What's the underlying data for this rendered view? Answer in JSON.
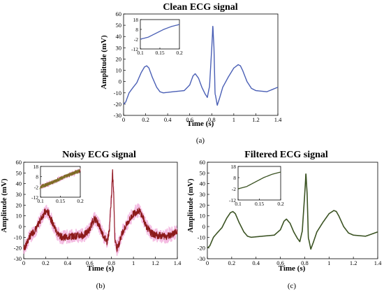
{
  "colors": {
    "clean": "#4a5fb5",
    "noisy_band": "#f0a6d8",
    "noisy_line": "#8c1a1a",
    "filtered": "#3b5323",
    "axis": "#000000"
  },
  "chart_data": [
    {
      "type": "line",
      "panel": "(a)",
      "title": "Clean ECG signal",
      "xlabel": "Time (s)",
      "ylabel": "Amplitude (mV)",
      "xlim": [
        0,
        1.4
      ],
      "ylim": [
        -30,
        60
      ],
      "xticks": [
        "0",
        "0.2",
        "0.4",
        "0.6",
        "0.8",
        "1",
        "1.2",
        "1.4"
      ],
      "yticks": [
        "-30",
        "-20",
        "-10",
        "0",
        "10",
        "20",
        "30",
        "40",
        "50",
        "60"
      ],
      "grid": false,
      "series": [
        {
          "x": [
            0,
            0.02,
            0.05,
            0.08,
            0.12,
            0.16,
            0.19,
            0.21,
            0.23,
            0.26,
            0.3,
            0.33,
            0.36,
            0.45,
            0.55,
            0.6,
            0.63,
            0.65,
            0.68,
            0.71,
            0.74,
            0.76,
            0.78,
            0.8,
            0.81,
            0.82,
            0.83,
            0.85,
            0.87,
            0.9,
            0.95,
            1.0,
            1.04,
            1.06,
            1.08,
            1.12,
            1.16,
            1.2,
            1.3,
            1.4
          ],
          "y": [
            -20,
            -18,
            -10,
            -6,
            -1,
            8,
            13,
            14,
            12,
            4,
            -5,
            -9,
            -10,
            -9,
            -8,
            -3,
            5,
            7,
            3,
            -5,
            -11,
            -14,
            -4,
            30,
            49,
            30,
            -10,
            -21,
            -15,
            -5,
            4,
            12,
            15,
            14,
            10,
            0,
            -6,
            -8,
            -9,
            -5
          ]
        }
      ],
      "inset": {
        "xlim": [
          0.1,
          0.2
        ],
        "ylim": [
          -12,
          18
        ],
        "xticks": [
          "0.1",
          "0.15",
          "0.2"
        ],
        "yticks": [
          "-12",
          "-2",
          "8",
          "18"
        ],
        "x": [
          0.1,
          0.12,
          0.14,
          0.16,
          0.18,
          0.2
        ],
        "y": [
          -2,
          0,
          4,
          8,
          11,
          13
        ]
      }
    },
    {
      "type": "line",
      "panel": "(b)",
      "title": "Noisy ECG signal",
      "xlabel": "Time (s)",
      "ylabel": "Amplitude (mV)",
      "xlim": [
        0,
        1.4
      ],
      "ylim": [
        -30,
        60
      ],
      "xticks": [
        "0",
        "0.2",
        "0.4",
        "0.6",
        "0.8",
        "1",
        "1.2",
        "1.4"
      ],
      "yticks": [
        "-30",
        "-20",
        "-10",
        "0",
        "10",
        "20",
        "30",
        "40",
        "50",
        "60"
      ],
      "grid": false,
      "series": [
        {
          "x": [
            0,
            0.02,
            0.05,
            0.08,
            0.12,
            0.16,
            0.19,
            0.21,
            0.23,
            0.26,
            0.3,
            0.33,
            0.36,
            0.45,
            0.55,
            0.6,
            0.63,
            0.65,
            0.68,
            0.71,
            0.74,
            0.76,
            0.78,
            0.8,
            0.81,
            0.82,
            0.83,
            0.85,
            0.87,
            0.9,
            0.95,
            1.0,
            1.04,
            1.06,
            1.08,
            1.12,
            1.16,
            1.2,
            1.3,
            1.4
          ],
          "y": [
            -20,
            -18,
            -10,
            -6,
            -1,
            8,
            13,
            14,
            12,
            4,
            -5,
            -9,
            -10,
            -9,
            -8,
            -3,
            5,
            7,
            3,
            -5,
            -11,
            -14,
            -4,
            30,
            50,
            30,
            -10,
            -21,
            -15,
            -5,
            4,
            12,
            15,
            14,
            10,
            0,
            -6,
            -8,
            -9,
            -5
          ]
        }
      ],
      "inset": {
        "xlim": [
          0.1,
          0.2
        ],
        "ylim": [
          -12,
          18
        ],
        "xticks": [
          "0.1",
          "0.15",
          "0.2"
        ],
        "yticks": [
          "-12",
          "-2",
          "8",
          "18"
        ],
        "x": [
          0.1,
          0.12,
          0.14,
          0.16,
          0.18,
          0.2
        ],
        "y": [
          -2,
          1,
          4,
          8,
          11,
          14
        ]
      }
    },
    {
      "type": "line",
      "panel": "(c)",
      "title": "Filtered ECG signal",
      "xlabel": "Time (s)",
      "ylabel": "Amplitude (mV)",
      "xlim": [
        0,
        1.4
      ],
      "ylim": [
        -30,
        60
      ],
      "xticks": [
        "0",
        "0.2",
        "0.4",
        "0.6",
        "0.8",
        "1",
        "1.2",
        "1.4"
      ],
      "yticks": [
        "-30",
        "-20",
        "-10",
        "0",
        "10",
        "20",
        "30",
        "40",
        "50",
        "60"
      ],
      "grid": false,
      "series": [
        {
          "x": [
            0,
            0.02,
            0.05,
            0.08,
            0.12,
            0.16,
            0.19,
            0.21,
            0.23,
            0.26,
            0.3,
            0.33,
            0.36,
            0.45,
            0.55,
            0.6,
            0.63,
            0.65,
            0.68,
            0.71,
            0.74,
            0.76,
            0.78,
            0.8,
            0.81,
            0.82,
            0.83,
            0.85,
            0.87,
            0.9,
            0.95,
            1.0,
            1.04,
            1.06,
            1.08,
            1.12,
            1.16,
            1.2,
            1.3,
            1.4
          ],
          "y": [
            -20,
            -18,
            -10,
            -6,
            -1,
            8,
            13,
            14,
            12,
            4,
            -5,
            -9,
            -10,
            -9,
            -8,
            -3,
            5,
            7,
            3,
            -5,
            -11,
            -14,
            -4,
            30,
            49,
            30,
            -10,
            -21,
            -15,
            -5,
            4,
            12,
            15,
            14,
            10,
            0,
            -6,
            -8,
            -9,
            -5
          ]
        }
      ],
      "inset": {
        "xlim": [
          0.1,
          0.2
        ],
        "ylim": [
          -12,
          18
        ],
        "xticks": [
          "0.1",
          "0.15",
          "0.2"
        ],
        "yticks": [
          "-12",
          "-2",
          "8",
          "18"
        ],
        "x": [
          0.1,
          0.12,
          0.14,
          0.16,
          0.18,
          0.2
        ],
        "y": [
          -2,
          0,
          4,
          8,
          11,
          13
        ]
      }
    }
  ]
}
